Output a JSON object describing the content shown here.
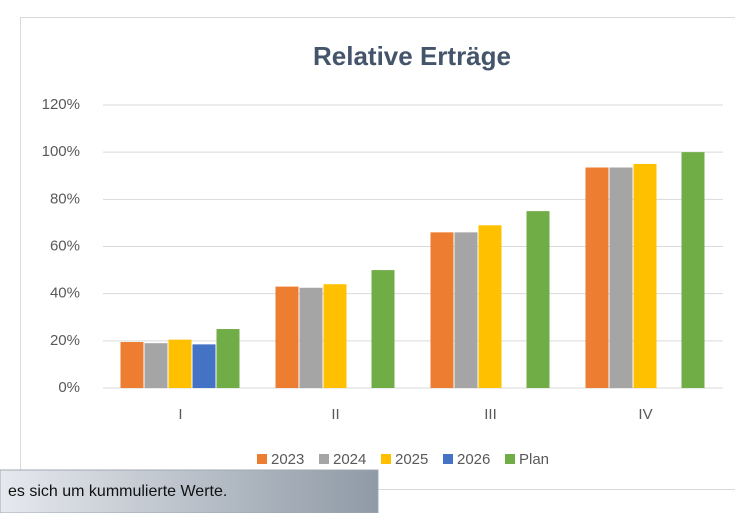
{
  "chart_data": {
    "type": "bar",
    "title": "Relative Erträge",
    "categories": [
      "I",
      "II",
      "III",
      "IV"
    ],
    "series": [
      {
        "name": "2023",
        "color": "#ed7d31",
        "values": [
          19.5,
          43,
          66,
          93.5
        ]
      },
      {
        "name": "2024",
        "color": "#a5a5a5",
        "values": [
          19,
          42.5,
          66,
          93.5
        ]
      },
      {
        "name": "2025",
        "color": "#ffc000",
        "values": [
          20.5,
          44,
          69,
          95
        ]
      },
      {
        "name": "2026",
        "color": "#4472c4",
        "values": [
          18.5,
          null,
          null,
          null
        ]
      },
      {
        "name": "Plan",
        "color": "#70ad47",
        "values": [
          25,
          50,
          75,
          100
        ]
      }
    ],
    "ylim": [
      0,
      120
    ],
    "yticks": [
      {
        "value": 0,
        "label": "0%"
      },
      {
        "value": 20,
        "label": "20%"
      },
      {
        "value": 40,
        "label": "40%"
      },
      {
        "value": 60,
        "label": "60%"
      },
      {
        "value": 80,
        "label": "80%"
      },
      {
        "value": 100,
        "label": "100%"
      },
      {
        "value": 120,
        "label": "120%"
      }
    ],
    "grid": true,
    "legend": "bottom"
  },
  "tooltip": {
    "text": "es sich um kummulierte Werte."
  }
}
